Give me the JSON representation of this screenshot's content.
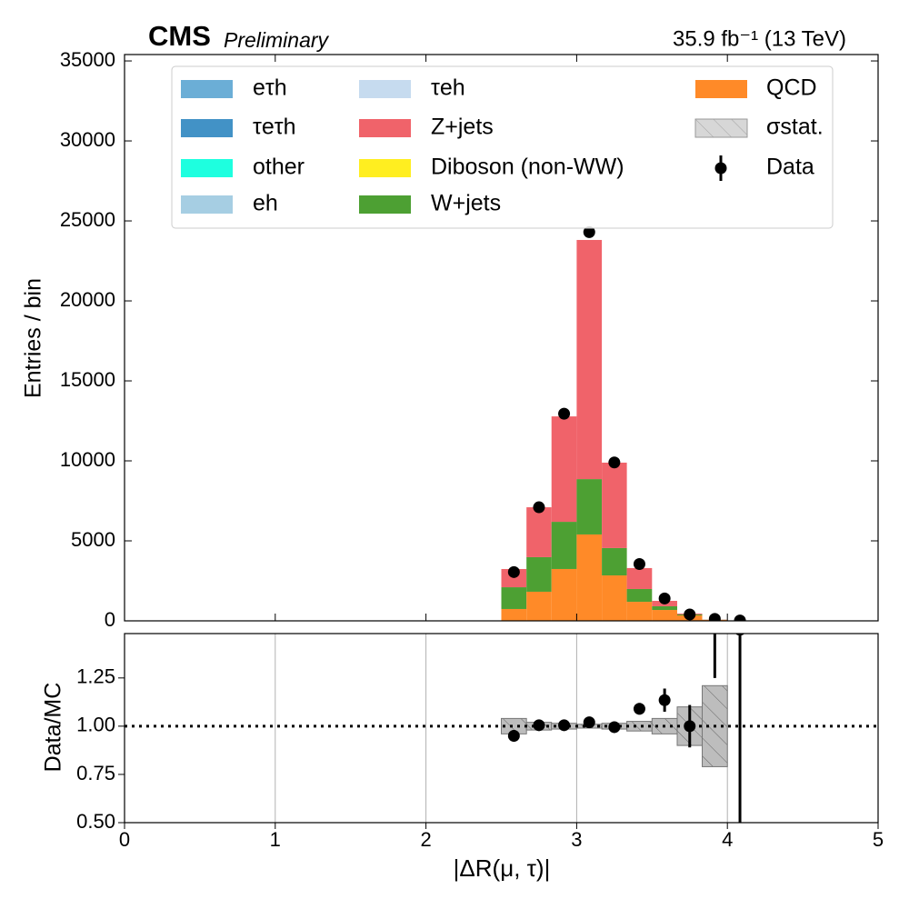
{
  "chart_data": [
    {
      "type": "stacked-histogram",
      "title": "CMS",
      "subtitle": "Preliminary",
      "annotation": "35.9 fb⁻¹ (13 TeV)",
      "ylabel": "Entries / bin",
      "bins": [
        2.5,
        2.667,
        2.833,
        3,
        3.167,
        3.333,
        3.5,
        3.667,
        3.833,
        4,
        4.167
      ],
      "xlim": [
        0,
        5
      ],
      "xticks": [
        0,
        1,
        2,
        3,
        4,
        5
      ],
      "ylim": [
        0,
        35400
      ],
      "yticks": [
        0,
        5000,
        10000,
        15000,
        20000,
        25000,
        30000,
        35000
      ],
      "legend": "top",
      "series": [
        {
          "name": "eτh",
          "color": "#6baed6",
          "values": [
            0,
            0,
            0,
            0,
            0,
            0,
            0,
            0,
            0,
            0
          ]
        },
        {
          "name": "τeτh",
          "color": "#4292c6",
          "values": [
            0,
            0,
            0,
            0,
            0,
            0,
            0,
            0,
            0,
            0
          ]
        },
        {
          "name": "other",
          "color": "#1effdf",
          "values": [
            0,
            0,
            0,
            0,
            0,
            0,
            0,
            0,
            0,
            0
          ]
        },
        {
          "name": "eh",
          "color": "#a6cee3",
          "values": [
            0,
            0,
            0,
            0,
            0,
            0,
            0,
            0,
            0,
            0
          ]
        },
        {
          "name": "τeh",
          "color": "#c6dbef",
          "values": [
            0,
            0,
            0,
            0,
            0,
            0,
            0,
            0,
            0,
            0
          ]
        },
        {
          "name": "Z+jets",
          "color": "#f0636a",
          "values": [
            1140,
            3120,
            6590,
            14950,
            5340,
            1310,
            340,
            55,
            10,
            0
          ]
        },
        {
          "name": "Diboson (non-WW)",
          "color": "#ffee20",
          "values": [
            0,
            0,
            0,
            0,
            0,
            0,
            0,
            0,
            0,
            0
          ]
        },
        {
          "name": "W+jets",
          "color": "#4da033",
          "values": [
            1360,
            2160,
            2950,
            3460,
            1710,
            800,
            230,
            60,
            10,
            0
          ]
        },
        {
          "name": "QCD",
          "color": "#ff8a28",
          "values": [
            740,
            1820,
            3240,
            5400,
            2840,
            1190,
            680,
            340,
            60,
            0
          ]
        }
      ],
      "stat_name": "σstat.",
      "data": {
        "name": "Data",
        "color": "#000000",
        "values": [
          3050,
          7100,
          12950,
          24300,
          9900,
          3550,
          1400,
          400,
          120,
          20
        ]
      }
    },
    {
      "type": "ratio",
      "ylabel": "Data/MC",
      "xlabel": "|ΔR(μ, τ)|",
      "xlim": [
        0,
        5
      ],
      "xticks": [
        0,
        1,
        2,
        3,
        4,
        5
      ],
      "grid": true,
      "ylim": [
        0.5,
        1.48
      ],
      "yticks": [
        {
          "value": 0.5,
          "label": "0.50"
        },
        {
          "value": 0.75,
          "label": "0.75"
        },
        {
          "value": 1,
          "label": "1.00"
        },
        {
          "value": 1.25,
          "label": "1.25"
        }
      ],
      "hline": 1,
      "values": [
        0.95,
        1.005,
        1.005,
        1.02,
        0.995,
        1.09,
        1.135,
        1.0,
        1.7,
        1.5
      ],
      "errors": [
        0.03,
        0.015,
        0.01,
        0.01,
        0.015,
        0.03,
        0.06,
        0.11,
        0.45,
        1.5
      ],
      "stat_errors": [
        0.04,
        0.02,
        0.015,
        0.01,
        0.015,
        0.025,
        0.04,
        0.1,
        0.21,
        0
      ]
    }
  ]
}
